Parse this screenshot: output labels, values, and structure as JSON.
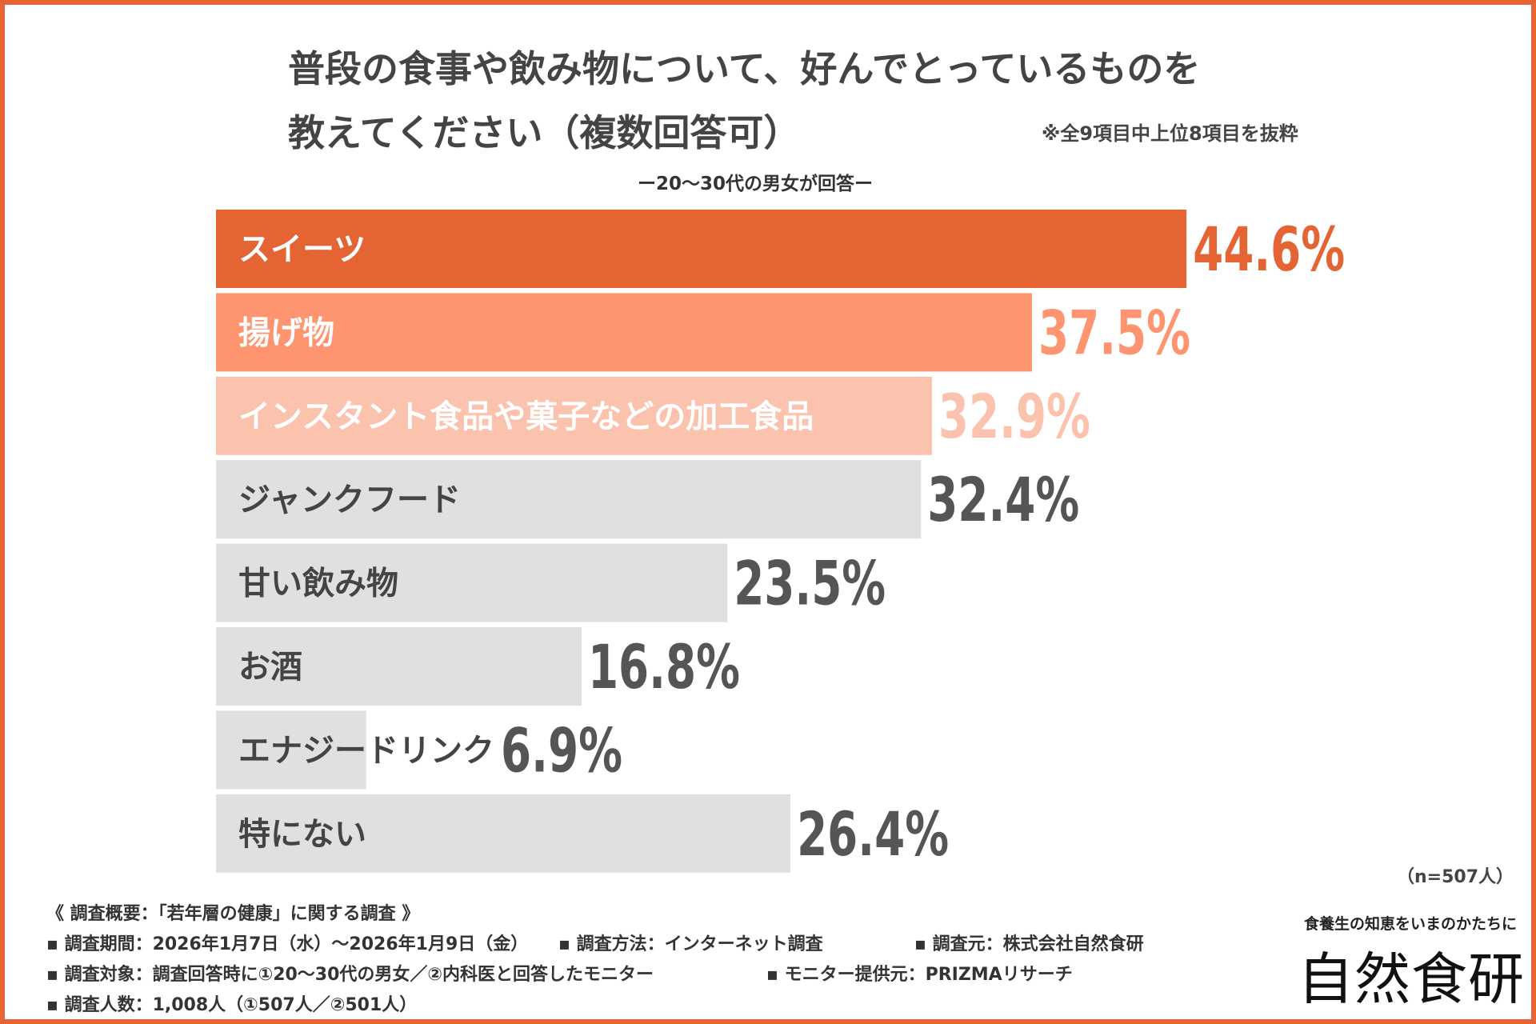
{
  "title_line1": "普段の食事や飲み物について、好んでとっているものを",
  "title_line2": "教えてください（複数回答可）",
  "note": "※全9項目中上位8項目を抜粋",
  "subtitle": "ー20～30代の男女が回答ー",
  "n_label": "（n=507人）",
  "colors": {
    "frame": "#e46434",
    "rank1": "#e46434",
    "rank2": "#ff9470",
    "rank3": "#fbc2ad",
    "other": "#e0e0e0",
    "other_text": "#444444",
    "other_value": "#555555"
  },
  "chart_data": {
    "type": "bar",
    "orientation": "horizontal",
    "unit": "%",
    "categories": [
      "スイーツ",
      "揚げ物",
      "インスタント食品や菓子などの加工食品",
      "ジャンクフード",
      "甘い飲み物",
      "お酒",
      "エナジードリンク",
      "特にない"
    ],
    "values": [
      44.6,
      37.5,
      32.9,
      32.4,
      23.5,
      16.8,
      6.9,
      26.4
    ],
    "value_labels": [
      "44.6%",
      "37.5%",
      "32.9%",
      "32.4%",
      "23.5%",
      "16.8%",
      "6.9%",
      "26.4%"
    ],
    "highlight_top": 3
  },
  "survey": {
    "header": "《 調査概要：「若年層の健康」に関する調査 》",
    "period": "▪ 調査期間：2026年1月7日（水）～2026年1月9日（金）",
    "method": "▪ 調査方法：インターネット調査",
    "source": "▪ 調査元：株式会社自然食研",
    "target": "▪ 調査対象：調査回答時に①20～30代の男女／②内科医と回答したモニター",
    "monitor": "▪ モニター提供元：PRIZMAリサーチ",
    "count": "▪ 調査人数：1,008人（①507人／②501人）"
  },
  "brand": {
    "tagline": "食養生の知恵をいまのかたちに",
    "logo": "自然食研"
  }
}
